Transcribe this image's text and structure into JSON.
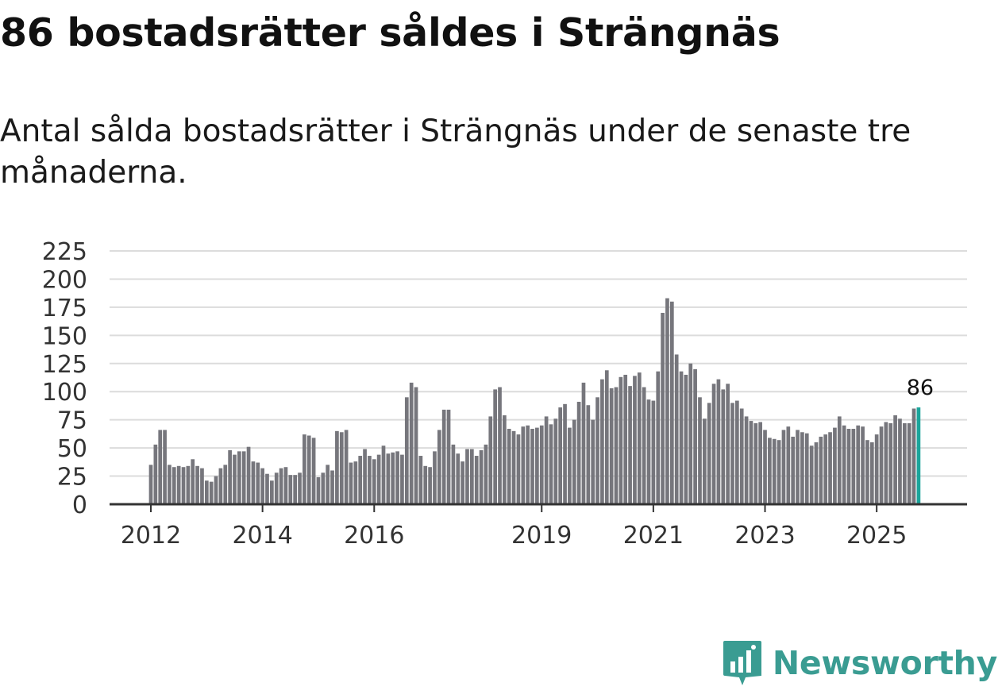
{
  "header": {
    "title": "86 bostadsrätter såldes i Strängnäs",
    "subtitle": "Antal sålda bostadsrätter i Strängnäs under de senaste tre månaderna."
  },
  "brand": {
    "name": "Newsworthy",
    "icon": "newsworthy-logo-icon"
  },
  "colors": {
    "bar": "#76767c",
    "highlight": "#1aa59b",
    "grid": "#dcdcdc",
    "axis": "#333333",
    "brand": "#3a9c92"
  },
  "chart_data": {
    "type": "bar",
    "title": "86 bostadsrätter såldes i Strängnäs",
    "xlabel": "",
    "ylabel": "",
    "ylim": [
      0,
      225
    ],
    "yticks": [
      0,
      25,
      50,
      75,
      100,
      125,
      150,
      175,
      200,
      225
    ],
    "xticks": [
      {
        "label": "2012",
        "index": 0
      },
      {
        "label": "2014",
        "index": 24
      },
      {
        "label": "2016",
        "index": 48
      },
      {
        "label": "2019",
        "index": 84
      },
      {
        "label": "2021",
        "index": 108
      },
      {
        "label": "2023",
        "index": 132
      },
      {
        "label": "2025",
        "index": 156
      }
    ],
    "start": "2012-01",
    "values": [
      35,
      53,
      66,
      66,
      35,
      33,
      34,
      33,
      34,
      40,
      34,
      32,
      21,
      20,
      25,
      32,
      35,
      48,
      44,
      47,
      47,
      51,
      38,
      37,
      32,
      27,
      21,
      28,
      32,
      33,
      26,
      26,
      28,
      62,
      61,
      59,
      24,
      28,
      35,
      30,
      65,
      64,
      66,
      37,
      38,
      43,
      49,
      43,
      40,
      44,
      52,
      45,
      46,
      47,
      44,
      95,
      108,
      104,
      43,
      34,
      33,
      47,
      66,
      84,
      84,
      53,
      45,
      38,
      49,
      49,
      43,
      48,
      53,
      78,
      102,
      104,
      79,
      67,
      65,
      62,
      69,
      70,
      67,
      68,
      70,
      78,
      71,
      76,
      86,
      89,
      68,
      75,
      91,
      108,
      88,
      75,
      95,
      111,
      119,
      103,
      104,
      113,
      115,
      105,
      114,
      117,
      104,
      93,
      92,
      118,
      170,
      183,
      180,
      133,
      118,
      115,
      125,
      120,
      95,
      76,
      90,
      107,
      111,
      102,
      107,
      90,
      92,
      85,
      78,
      74,
      72,
      73,
      66,
      59,
      58,
      57,
      66,
      69,
      60,
      66,
      64,
      63,
      52,
      55,
      60,
      62,
      64,
      68,
      78,
      70,
      67,
      67,
      70,
      69,
      57,
      55,
      62,
      69,
      73,
      72,
      79,
      76,
      72,
      72,
      85,
      86
    ],
    "highlight_last": true,
    "annotation": "86"
  }
}
